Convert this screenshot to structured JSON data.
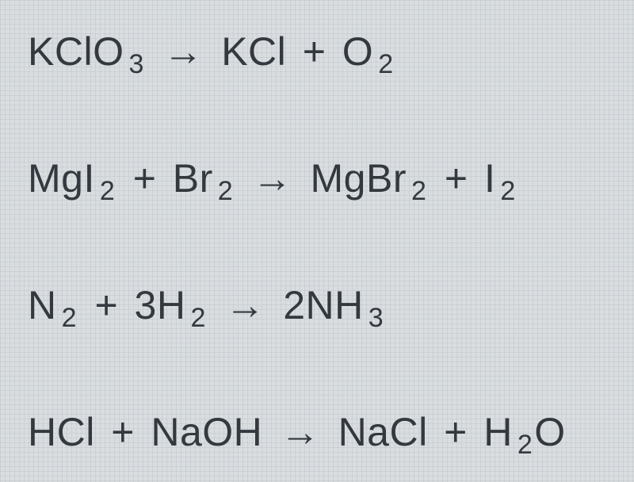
{
  "text_color": "#33393e",
  "background_color": "#d9dde0",
  "grid_color": "#b4bbc0",
  "font_size_main": 50,
  "font_size_sub": 34,
  "equations": [
    {
      "tokens": [
        {
          "t": "text",
          "v": "KClO"
        },
        {
          "t": "sub",
          "v": "3"
        },
        {
          "t": "arrow",
          "v": "→"
        },
        {
          "t": "text",
          "v": "KCl"
        },
        {
          "t": "plus",
          "v": "+"
        },
        {
          "t": "text",
          "v": "O"
        },
        {
          "t": "sub",
          "v": "2"
        }
      ]
    },
    {
      "tokens": [
        {
          "t": "text",
          "v": "MgI"
        },
        {
          "t": "sub",
          "v": "2"
        },
        {
          "t": "plus",
          "v": "+"
        },
        {
          "t": "text",
          "v": "Br"
        },
        {
          "t": "sub",
          "v": "2"
        },
        {
          "t": "arrow",
          "v": "→"
        },
        {
          "t": "text",
          "v": "MgBr"
        },
        {
          "t": "sub",
          "v": "2"
        },
        {
          "t": "plus",
          "v": "+"
        },
        {
          "t": "text",
          "v": "I"
        },
        {
          "t": "sub",
          "v": "2"
        }
      ]
    },
    {
      "tokens": [
        {
          "t": "text",
          "v": "N"
        },
        {
          "t": "sub",
          "v": "2"
        },
        {
          "t": "plus",
          "v": "+"
        },
        {
          "t": "text",
          "v": "3H"
        },
        {
          "t": "sub",
          "v": "2"
        },
        {
          "t": "arrow",
          "v": "→"
        },
        {
          "t": "text",
          "v": "2NH"
        },
        {
          "t": "sub",
          "v": "3"
        }
      ]
    },
    {
      "tokens": [
        {
          "t": "text",
          "v": "HCl"
        },
        {
          "t": "plus",
          "v": "+"
        },
        {
          "t": "text",
          "v": "NaOH"
        },
        {
          "t": "arrow",
          "v": "→"
        },
        {
          "t": "text",
          "v": "NaCl"
        },
        {
          "t": "plus",
          "v": "+"
        },
        {
          "t": "text",
          "v": "H"
        },
        {
          "t": "sub",
          "v": "2"
        },
        {
          "t": "text",
          "v": "O"
        }
      ]
    }
  ]
}
